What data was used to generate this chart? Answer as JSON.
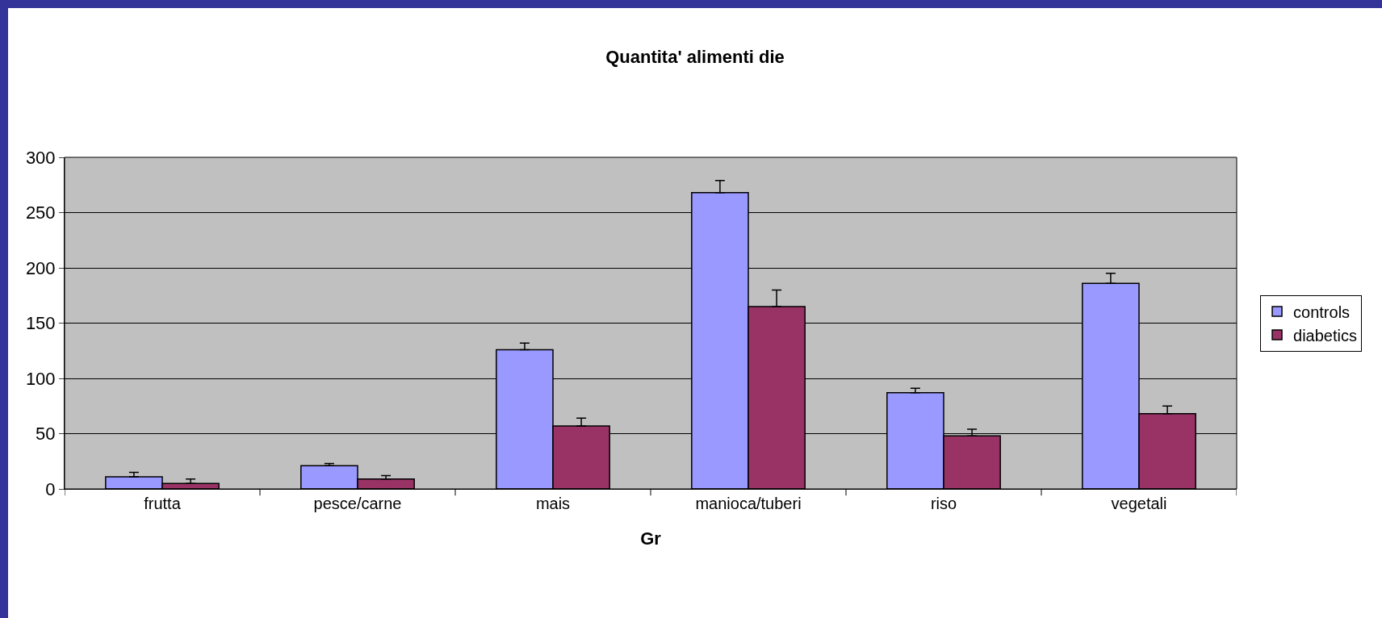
{
  "chart_data": {
    "type": "bar",
    "title": "Quantita' alimenti die",
    "xlabel": "Gr",
    "categories": [
      "frutta",
      "pesce/carne",
      "mais",
      "manioca/tuberi",
      "riso",
      "vegetali"
    ],
    "series": [
      {
        "name": "controls",
        "color": "#9999ff",
        "values": [
          11,
          21,
          126,
          268,
          87,
          186
        ],
        "errors": [
          [
            11,
            15
          ],
          [
            21,
            23
          ],
          [
            126,
            132
          ],
          [
            268,
            279
          ],
          [
            87,
            91
          ],
          [
            186,
            195
          ]
        ]
      },
      {
        "name": "diabetics",
        "color": "#993366",
        "values": [
          5,
          9,
          57,
          165,
          48,
          68
        ],
        "errors": [
          [
            5,
            9
          ],
          [
            9,
            12
          ],
          [
            57,
            64
          ],
          [
            165,
            180
          ],
          [
            48,
            54
          ],
          [
            68,
            75
          ]
        ]
      }
    ],
    "ylim": [
      0,
      300
    ],
    "yticks": [
      0,
      50,
      100,
      150,
      200,
      250,
      300
    ],
    "grid": "y",
    "legend": "right"
  }
}
